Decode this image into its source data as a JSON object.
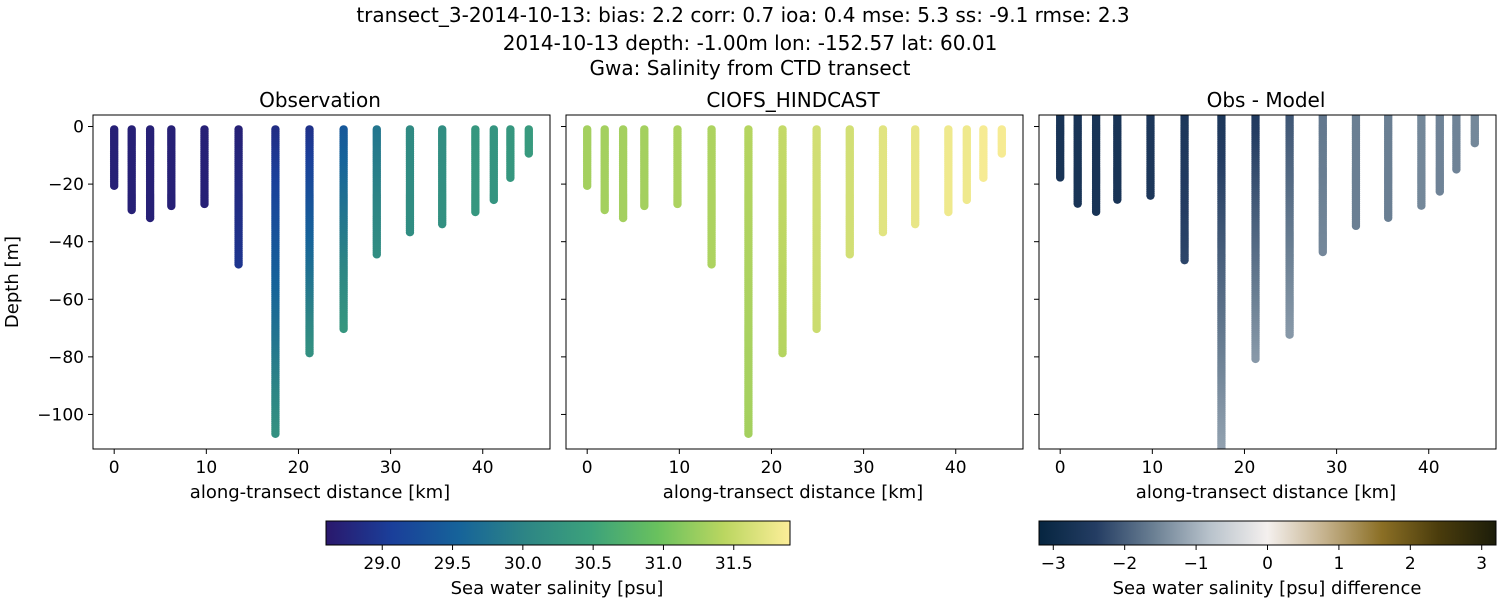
{
  "figure": {
    "title_lines": [
      "transect_3-2014-10-13: bias: 2.2  corr: 0.7  ioa: 0.4  mse: 5.3  ss: -9.1  rmse: 2.3",
      "2014-10-13 depth: -1.00m lon: -152.57 lat: 60.01",
      "Gwa: Salinity from CTD transect"
    ]
  },
  "chart_data": [
    {
      "type": "scatter",
      "title": "Observation",
      "xlabel": "along-transect distance [km]",
      "ylabel": "Depth [m]",
      "xlim": [
        -2.3,
        47.3
      ],
      "ylim": [
        -112,
        4
      ],
      "xticks": [
        0,
        10,
        20,
        30,
        40
      ],
      "yticks": [
        0,
        -20,
        -40,
        -60,
        -80,
        -100
      ],
      "colormap": "haline",
      "vmin": 28.6,
      "vmax": 31.9,
      "grid": false,
      "casts": [
        {
          "x": 0.0,
          "depth_min": -1,
          "depth_max": -21,
          "value_top": 28.7,
          "value_bottom": 28.7
        },
        {
          "x": 1.9,
          "depth_min": -1,
          "depth_max": -29,
          "value_top": 28.7,
          "value_bottom": 28.7
        },
        {
          "x": 3.9,
          "depth_min": -1,
          "depth_max": -32,
          "value_top": 28.7,
          "value_bottom": 28.7
        },
        {
          "x": 6.2,
          "depth_min": -1,
          "depth_max": -28,
          "value_top": 28.7,
          "value_bottom": 28.7
        },
        {
          "x": 9.8,
          "depth_min": -1,
          "depth_max": -27,
          "value_top": 28.7,
          "value_bottom": 28.7
        },
        {
          "x": 13.5,
          "depth_min": -1,
          "depth_max": -48,
          "value_top": 28.7,
          "value_bottom": 28.95
        },
        {
          "x": 17.5,
          "depth_min": -1,
          "depth_max": -107,
          "value_top": 28.85,
          "value_bottom": 30.2
        },
        {
          "x": 21.2,
          "depth_min": -1,
          "depth_max": -79,
          "value_top": 28.9,
          "value_bottom": 30.2
        },
        {
          "x": 24.9,
          "depth_min": -1,
          "depth_max": -71,
          "value_top": 29.4,
          "value_bottom": 30.3
        },
        {
          "x": 28.5,
          "depth_min": -1,
          "depth_max": -45,
          "value_top": 29.8,
          "value_bottom": 30.15
        },
        {
          "x": 32.1,
          "depth_min": -1,
          "depth_max": -37,
          "value_top": 30.1,
          "value_bottom": 30.15
        },
        {
          "x": 35.6,
          "depth_min": -1,
          "depth_max": -34,
          "value_top": 30.15,
          "value_bottom": 30.2
        },
        {
          "x": 39.2,
          "depth_min": -1,
          "depth_max": -30,
          "value_top": 30.3,
          "value_bottom": 30.3
        },
        {
          "x": 41.2,
          "depth_min": -1,
          "depth_max": -26,
          "value_top": 30.25,
          "value_bottom": 30.25
        },
        {
          "x": 43.0,
          "depth_min": -1,
          "depth_max": -18,
          "value_top": 30.3,
          "value_bottom": 30.3
        },
        {
          "x": 45.0,
          "depth_min": -1,
          "depth_max": -10,
          "value_top": 30.35,
          "value_bottom": 30.35
        }
      ]
    },
    {
      "type": "scatter",
      "title": "CIOFS_HINDCAST",
      "xlabel": "along-transect distance [km]",
      "ylabel": "",
      "xlim": [
        -2.3,
        47.3
      ],
      "ylim": [
        -112,
        4
      ],
      "xticks": [
        0,
        10,
        20,
        30,
        40
      ],
      "yticks": [
        0,
        -20,
        -40,
        -60,
        -80,
        -100
      ],
      "colormap": "haline",
      "vmin": 28.6,
      "vmax": 31.9,
      "grid": false,
      "casts": [
        {
          "x": 0.0,
          "depth_min": -1,
          "depth_max": -21,
          "value_top": 31.3,
          "value_bottom": 31.3
        },
        {
          "x": 1.9,
          "depth_min": -1,
          "depth_max": -29,
          "value_top": 31.3,
          "value_bottom": 31.3
        },
        {
          "x": 3.9,
          "depth_min": -1,
          "depth_max": -32,
          "value_top": 31.3,
          "value_bottom": 31.3
        },
        {
          "x": 6.2,
          "depth_min": -1,
          "depth_max": -28,
          "value_top": 31.3,
          "value_bottom": 31.3
        },
        {
          "x": 9.8,
          "depth_min": -1,
          "depth_max": -27,
          "value_top": 31.35,
          "value_bottom": 31.35
        },
        {
          "x": 13.5,
          "depth_min": -1,
          "depth_max": -48,
          "value_top": 31.35,
          "value_bottom": 31.35
        },
        {
          "x": 17.5,
          "depth_min": -1,
          "depth_max": -107,
          "value_top": 31.4,
          "value_bottom": 31.3
        },
        {
          "x": 21.2,
          "depth_min": -1,
          "depth_max": -79,
          "value_top": 31.5,
          "value_bottom": 31.4
        },
        {
          "x": 24.9,
          "depth_min": -1,
          "depth_max": -71,
          "value_top": 31.6,
          "value_bottom": 31.55
        },
        {
          "x": 28.5,
          "depth_min": -1,
          "depth_max": -45,
          "value_top": 31.6,
          "value_bottom": 31.6
        },
        {
          "x": 32.1,
          "depth_min": -1,
          "depth_max": -37,
          "value_top": 31.7,
          "value_bottom": 31.7
        },
        {
          "x": 35.6,
          "depth_min": -1,
          "depth_max": -34,
          "value_top": 31.75,
          "value_bottom": 31.75
        },
        {
          "x": 39.2,
          "depth_min": -1,
          "depth_max": -30,
          "value_top": 31.8,
          "value_bottom": 31.8
        },
        {
          "x": 41.2,
          "depth_min": -1,
          "depth_max": -26,
          "value_top": 31.8,
          "value_bottom": 31.8
        },
        {
          "x": 43.0,
          "depth_min": -1,
          "depth_max": -18,
          "value_top": 31.85,
          "value_bottom": 31.85
        },
        {
          "x": 45.0,
          "depth_min": -1,
          "depth_max": -10,
          "value_top": 31.85,
          "value_bottom": 31.85
        }
      ]
    },
    {
      "type": "scatter",
      "title": "Obs - Model",
      "xlabel": "along-transect distance [km]",
      "ylabel": "",
      "xlim": [
        -2.3,
        47.3
      ],
      "ylim": [
        -112,
        4
      ],
      "xticks": [
        0,
        10,
        20,
        30,
        40
      ],
      "yticks": [
        0,
        -20,
        -40,
        -60,
        -80,
        -100
      ],
      "colormap": "diff",
      "vmin": -3.2,
      "vmax": 3.2,
      "grid": false,
      "casts": [
        {
          "x": 0.0,
          "depth_min": 4,
          "depth_max": -18,
          "value_top": -2.7,
          "value_bottom": -2.7
        },
        {
          "x": 1.9,
          "depth_min": 4,
          "depth_max": -27,
          "value_top": -2.7,
          "value_bottom": -2.7
        },
        {
          "x": 3.9,
          "depth_min": 4,
          "depth_max": -30,
          "value_top": -2.7,
          "value_bottom": -2.7
        },
        {
          "x": 6.2,
          "depth_min": 4,
          "depth_max": -26,
          "value_top": -2.7,
          "value_bottom": -2.7
        },
        {
          "x": 9.8,
          "depth_min": 4,
          "depth_max": -24,
          "value_top": -2.6,
          "value_bottom": -2.6
        },
        {
          "x": 13.5,
          "depth_min": 4,
          "depth_max": -47,
          "value_top": -2.6,
          "value_bottom": -2.3
        },
        {
          "x": 17.5,
          "depth_min": 4,
          "depth_max": -112,
          "value_top": -2.6,
          "value_bottom": -1.2
        },
        {
          "x": 21.2,
          "depth_min": 4,
          "depth_max": -81,
          "value_top": -2.5,
          "value_bottom": -1.3
        },
        {
          "x": 24.9,
          "depth_min": 4,
          "depth_max": -73,
          "value_top": -2.1,
          "value_bottom": -1.3
        },
        {
          "x": 28.5,
          "depth_min": 4,
          "depth_max": -44,
          "value_top": -1.7,
          "value_bottom": -1.5
        },
        {
          "x": 32.1,
          "depth_min": 4,
          "depth_max": -35,
          "value_top": -1.6,
          "value_bottom": -1.6
        },
        {
          "x": 35.6,
          "depth_min": 4,
          "depth_max": -32,
          "value_top": -1.6,
          "value_bottom": -1.6
        },
        {
          "x": 39.2,
          "depth_min": 4,
          "depth_max": -28,
          "value_top": -1.5,
          "value_bottom": -1.5
        },
        {
          "x": 41.2,
          "depth_min": 4,
          "depth_max": -23,
          "value_top": -1.55,
          "value_bottom": -1.55
        },
        {
          "x": 43.0,
          "depth_min": 4,
          "depth_max": -15,
          "value_top": -1.55,
          "value_bottom": -1.55
        },
        {
          "x": 45.0,
          "depth_min": 4,
          "depth_max": -6,
          "value_top": -1.5,
          "value_bottom": -1.5
        }
      ]
    }
  ],
  "colorbars": [
    {
      "label": "Sea water salinity [psu]",
      "colormap": "haline",
      "vmin": 28.6,
      "vmax": 31.9,
      "ticks": [
        29.0,
        29.5,
        30.0,
        30.5,
        31.0,
        31.5
      ],
      "tick_labels": [
        "29.0",
        "29.5",
        "30.0",
        "30.5",
        "31.0",
        "31.5"
      ]
    },
    {
      "label": "Sea water salinity [psu] difference",
      "colormap": "diff",
      "vmin": -3.2,
      "vmax": 3.2,
      "ticks": [
        -3,
        -2,
        -1,
        0,
        1,
        2,
        3
      ],
      "tick_labels": [
        "−3",
        "−2",
        "−1",
        "0",
        "1",
        "2",
        "3"
      ]
    }
  ],
  "colors": {
    "haline": [
      "#2a186c",
      "#1a3f9a",
      "#16639a",
      "#2d8585",
      "#3ca27b",
      "#69c15e",
      "#bad660",
      "#fdee99"
    ],
    "diff": [
      "#062540",
      "#243d63",
      "#6a7f93",
      "#b9c3cc",
      "#f4f0ee",
      "#c5b28d",
      "#8b6f25",
      "#4a3c0c",
      "#1c1d0a"
    ]
  }
}
